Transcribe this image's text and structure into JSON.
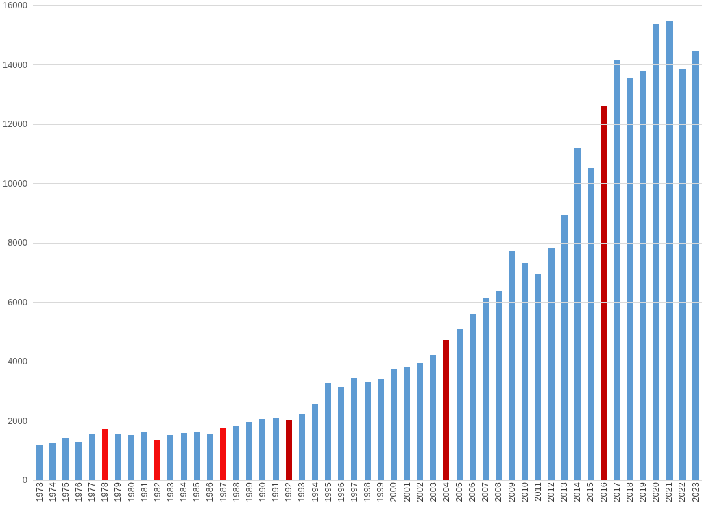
{
  "chart_data": {
    "type": "bar",
    "title": "",
    "xlabel": "",
    "ylabel": "",
    "legend": "none",
    "grid": true,
    "background_color": "#ffffff",
    "gridline_color": "#d9d9d9",
    "y_tick_label_color": "#595959",
    "x_tick_label_color": "#3d3d3d",
    "ylim": [
      0,
      16000
    ],
    "ytick_step": 2000,
    "yticks": [
      "0",
      "2000",
      "4000",
      "6000",
      "8000",
      "10000",
      "12000",
      "14000",
      "16000"
    ],
    "x_tick_rotation_degrees": 90,
    "categories": [
      "1973",
      "1974",
      "1975",
      "1976",
      "1977",
      "1978",
      "1979",
      "1980",
      "1981",
      "1982",
      "1983",
      "1984",
      "1985",
      "1986",
      "1987",
      "1988",
      "1989",
      "1990",
      "1991",
      "1992",
      "1993",
      "1994",
      "1995",
      "1996",
      "1997",
      "1998",
      "1999",
      "2000",
      "2001",
      "2002",
      "2003",
      "2004",
      "2005",
      "2006",
      "2007",
      "2008",
      "2009",
      "2010",
      "2011",
      "2012",
      "2013",
      "2014",
      "2015",
      "2016",
      "2017",
      "2018",
      "2019",
      "2020",
      "2021",
      "2022",
      "2023"
    ],
    "values": [
      1200,
      1260,
      1420,
      1300,
      1540,
      1710,
      1570,
      1530,
      1610,
      1370,
      1520,
      1600,
      1650,
      1560,
      1760,
      1830,
      1960,
      2050,
      2110,
      2040,
      2220,
      2570,
      3280,
      3150,
      3440,
      3300,
      3390,
      3750,
      3820,
      3950,
      4210,
      4710,
      5110,
      5620,
      6160,
      6390,
      7730,
      7310,
      6950,
      7830,
      8950,
      11200,
      10530,
      12620,
      14150,
      13540,
      13770,
      15370,
      15500,
      13850,
      14440
    ],
    "point_colors": [
      "blue",
      "blue",
      "blue",
      "blue",
      "blue",
      "red",
      "blue",
      "blue",
      "blue",
      "red",
      "blue",
      "blue",
      "blue",
      "blue",
      "red",
      "blue",
      "blue",
      "blue",
      "blue",
      "darkred",
      "blue",
      "blue",
      "blue",
      "blue",
      "blue",
      "blue",
      "blue",
      "blue",
      "blue",
      "blue",
      "blue",
      "darkred",
      "blue",
      "blue",
      "blue",
      "blue",
      "blue",
      "blue",
      "blue",
      "blue",
      "blue",
      "blue",
      "blue",
      "darkred",
      "blue",
      "blue",
      "blue",
      "blue",
      "blue",
      "blue",
      "blue"
    ],
    "palette": {
      "blue": "#5e9bd3",
      "red": "#f40d0d",
      "darkred": "#c00000"
    },
    "highlighted_years_bright_red": [
      "1978",
      "1982",
      "1987"
    ],
    "highlighted_years_dark_red": [
      "1992",
      "2004",
      "2016"
    ]
  }
}
